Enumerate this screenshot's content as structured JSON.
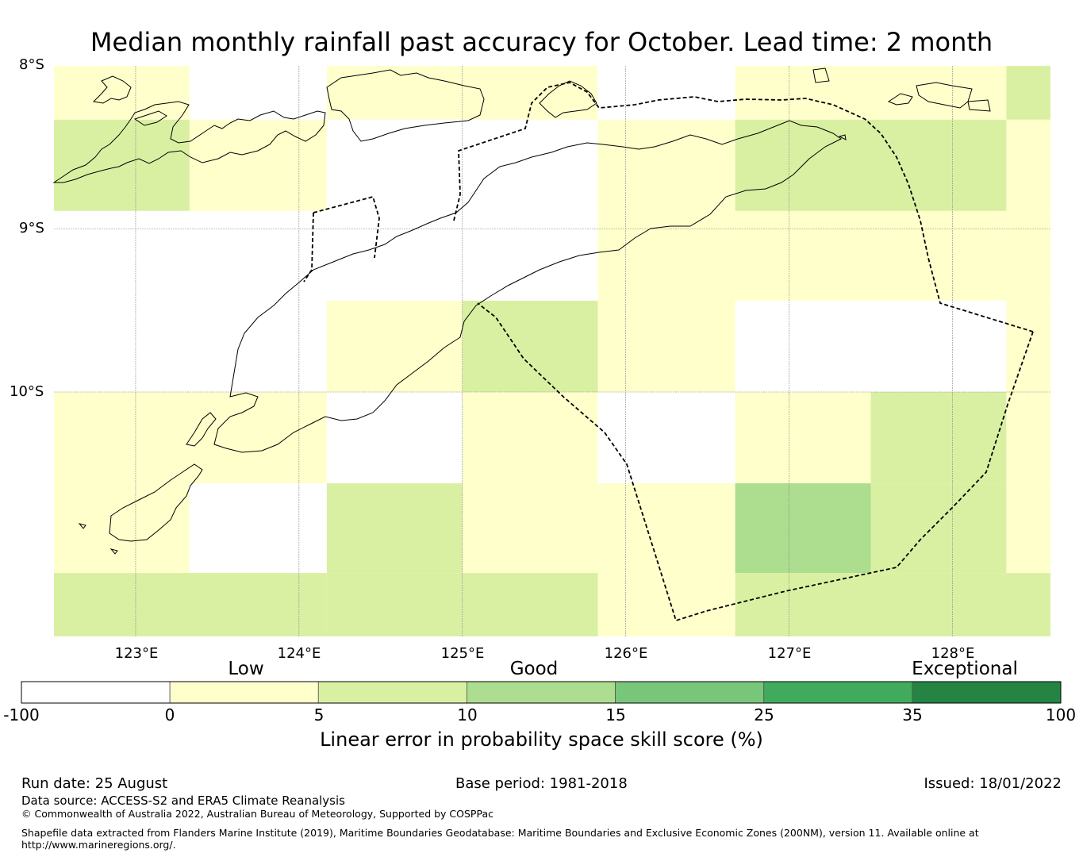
{
  "title": "Median monthly rainfall past accuracy for October. Lead time: 2 month",
  "map": {
    "latitude_labels": [
      "8°S",
      "9°S",
      "10°S"
    ],
    "longitude_labels": [
      "123°E",
      "124°E",
      "125°E",
      "126°E",
      "127°E",
      "128°E"
    ],
    "extent": {
      "lon_min": 122.5,
      "lon_max": 128.6,
      "lat_min": -11.5,
      "lat_max": -8.0
    },
    "grid_columns_lon_edges": [
      122.5,
      123.33,
      124.17,
      125.0,
      125.83,
      126.67,
      127.5,
      128.33,
      128.6
    ],
    "grid_rows_lat_edges": [
      -8.0,
      -8.33,
      -8.89,
      -9.44,
      -10.0,
      -10.56,
      -11.11,
      -11.5
    ],
    "skill_categories": [
      [
        1,
        0,
        1,
        1,
        0,
        1,
        1,
        2
      ],
      [
        2,
        1,
        0,
        0,
        1,
        2,
        2,
        1
      ],
      [
        0,
        0,
        0,
        0,
        1,
        1,
        1,
        1
      ],
      [
        0,
        0,
        1,
        2,
        1,
        0,
        0,
        1
      ],
      [
        1,
        1,
        0,
        1,
        0,
        1,
        2,
        1
      ],
      [
        1,
        0,
        2,
        1,
        1,
        3,
        2,
        1
      ],
      [
        2,
        2,
        2,
        2,
        1,
        2,
        2,
        2
      ]
    ]
  },
  "colorbar": {
    "categories": [
      "Low",
      "Good",
      "Exceptional"
    ],
    "ticks": [
      "-100",
      "0",
      "5",
      "10",
      "15",
      "25",
      "35",
      "100"
    ],
    "colors": [
      "#ffffff",
      "#ffffcc",
      "#d9f0a3",
      "#addd8e",
      "#78c679",
      "#41ab5d",
      "#238443"
    ],
    "title": "Linear error in probability space skill score (%)"
  },
  "footer": {
    "run_date": "Run date: 25 August",
    "base_period": "Base period: 1981-2018",
    "issued": "Issued: 18/01/2022",
    "data_source": "Data source: ACCESS-S2 and ERA5 Climate Reanalysis",
    "copyright": "© Commonwealth of Australia 2022, Australian Bureau of Meteorology, Supported by COSPPac",
    "shapefile_line1": "Shapefile data extracted from Flanders Marine Institute (2019), Maritime Boundaries Geodatabase: Maritime Boundaries and Exclusive Economic Zones (200NM), version 11. Available online at",
    "shapefile_line2": "http://www.marineregions.org/."
  }
}
